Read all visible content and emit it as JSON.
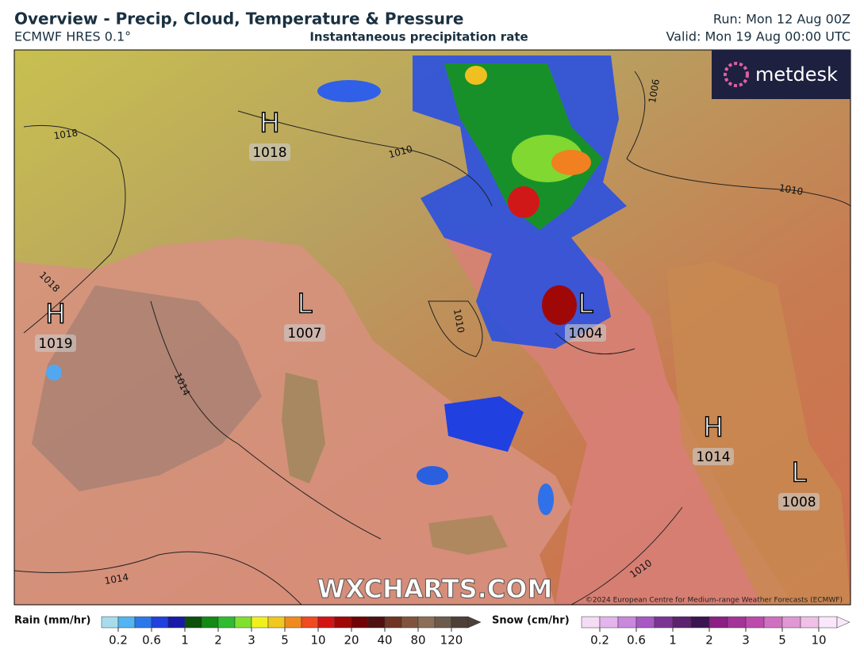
{
  "header": {
    "title": "Overview - Precip, Cloud, Temperature & Pressure",
    "model": "ECMWF HRES 0.1°",
    "subtitle": "Instantaneous precipitation rate",
    "run": "Run: Mon 12 Aug 00Z",
    "valid": "Valid: Mon 19 Aug 00:00 UTC"
  },
  "logo": "metdesk",
  "map": {
    "pressure_centers": [
      {
        "type": "H",
        "value": 1018
      },
      {
        "type": "H",
        "value": 1019
      },
      {
        "type": "L",
        "value": 1007
      },
      {
        "type": "L",
        "value": 1004
      },
      {
        "type": "H",
        "value": 1014
      },
      {
        "type": "L",
        "value": 1008
      }
    ],
    "isobar_labels": [
      1018,
      1010,
      1006,
      1010,
      1018,
      1014,
      1010,
      1014,
      1010
    ],
    "watermark": "WXCHARTS.COM",
    "copyright": "©2024 European Centre for Medium-range Weather Forecasts (ECMWF)"
  },
  "legend": {
    "rain": {
      "label": "Rain (mm/hr)",
      "ticks": [
        0.2,
        0.6,
        1,
        2,
        3,
        5,
        10,
        20,
        40,
        80,
        120
      ],
      "colors": [
        "#a8dced",
        "#52b4f2",
        "#2b78ea",
        "#2040e0",
        "#1a1aa8",
        "#0c500c",
        "#138a13",
        "#30bc30",
        "#80e030",
        "#f0f020",
        "#f0c820",
        "#f08a20",
        "#f04a20",
        "#d41414",
        "#a00808",
        "#700404",
        "#501010",
        "#6e3424",
        "#80543c",
        "#8c6e58",
        "#6c5a4c",
        "#4c4038"
      ]
    },
    "snow": {
      "label": "Snow (cm/hr)",
      "ticks": [
        0.2,
        0.6,
        1,
        2,
        3,
        5,
        10
      ],
      "colors": [
        "#f4dcf4",
        "#e4b4ec",
        "#c888dc",
        "#a858c4",
        "#7c3494",
        "#5c2270",
        "#3c1450",
        "#8c2084",
        "#a43498",
        "#bc4cac",
        "#d070c0",
        "#e098d4",
        "#f0c0e6",
        "#fae8fa"
      ]
    }
  }
}
